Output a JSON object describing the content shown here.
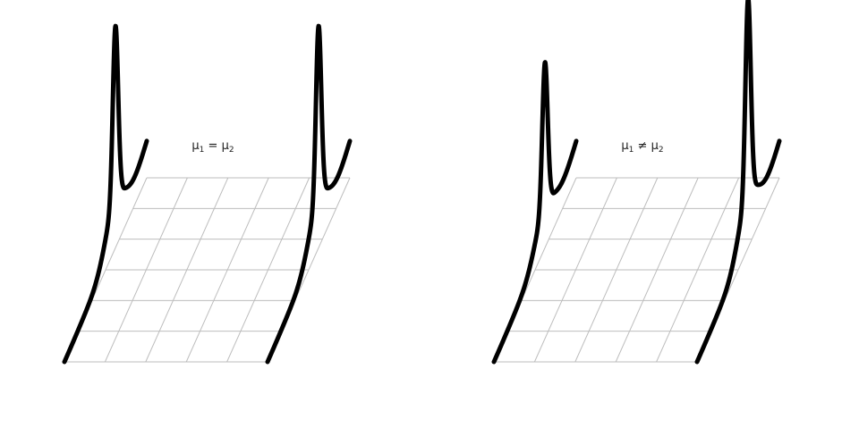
{
  "panels": [
    {
      "label": {
        "mu": "μ",
        "i1": "1",
        "rel": " = ",
        "i2": "2"
      },
      "distributions": [
        {
          "peak": 1.0
        },
        {
          "peak": 1.0
        }
      ]
    },
    {
      "label": {
        "mu": "μ",
        "i1": "1",
        "rel": " ≠ ",
        "i2": "2"
      },
      "distributions": [
        {
          "peak": 0.83
        },
        {
          "peak": 1.13
        }
      ]
    }
  ],
  "colors": {
    "curve": "#000000",
    "grid": "#bdbdbd"
  }
}
